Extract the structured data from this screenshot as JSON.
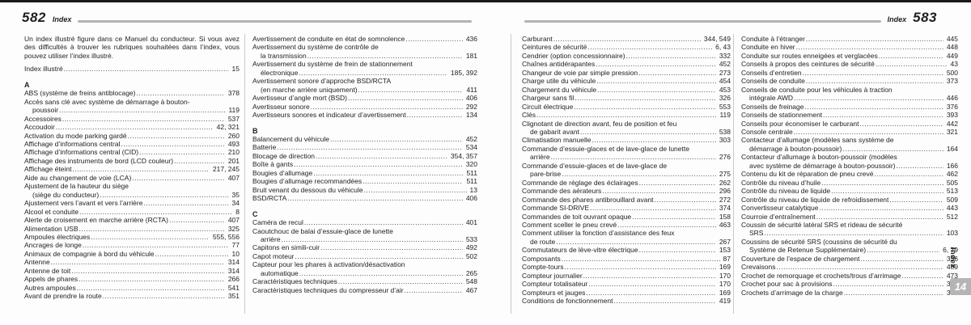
{
  "colors": {
    "text": "#1f1f1f",
    "header_rule": "#b3b3b3",
    "column_divider": "#c9c9c9",
    "top_edge": "#1a1a1a",
    "chapter_tab_bg": "#b5b5b5",
    "chapter_tab_text": "#ffffff"
  },
  "sidebar": {
    "vertical_label": "Index",
    "tab_label": "14"
  },
  "pages": [
    {
      "number": "582",
      "header_label": "Index",
      "intro": "Un index illustré figure dans ce Manuel du conducteur. Si vous avez des difficultés à trouver les rubriques souhaitées dans l’index, vous pouvez utiliser l’index illustré.",
      "intro_entry": {
        "lines": [
          "Index illustré"
        ],
        "page": "15"
      },
      "columns": [
        [
          {
            "letter": "A",
            "entries": [
              {
                "lines": [
                  "ABS (système de freins antiblocage)"
                ],
                "page": "378"
              },
              {
                "lines": [
                  "Accès sans clé avec système de démarrage à bouton-",
                  "poussoir"
                ],
                "page": "119"
              },
              {
                "lines": [
                  "Accessoires"
                ],
                "page": "537"
              },
              {
                "lines": [
                  "Accoudoir"
                ],
                "page": "42, 321"
              },
              {
                "lines": [
                  "Activation du mode parking gardé"
                ],
                "page": "260"
              },
              {
                "lines": [
                  "Affichage d’informations central"
                ],
                "page": "493"
              },
              {
                "lines": [
                  "Affichage d’informations central (CID)"
                ],
                "page": "210"
              },
              {
                "lines": [
                  "Affichage des instruments de bord (LCD couleur)"
                ],
                "page": "201"
              },
              {
                "lines": [
                  "Affichage éteint"
                ],
                "page": "217, 245"
              },
              {
                "lines": [
                  "Aide au changement de voie (LCA)"
                ],
                "page": "407"
              },
              {
                "lines": [
                  "Ajustement de la hauteur du siège",
                  "(siège du conducteur)"
                ],
                "page": "35"
              },
              {
                "lines": [
                  "Ajustement vers l’avant et vers l’arrière"
                ],
                "page": "34"
              },
              {
                "lines": [
                  "Alcool et conduite"
                ],
                "page": "8"
              },
              {
                "lines": [
                  "Alerte de croisement en marche arrière (RCTA)"
                ],
                "page": "407"
              },
              {
                "lines": [
                  "Alimentation USB"
                ],
                "page": "325"
              },
              {
                "lines": [
                  "Ampoules électriques"
                ],
                "page": "555, 556"
              },
              {
                "lines": [
                  "Ancrages de longe"
                ],
                "page": "77"
              },
              {
                "lines": [
                  "Animaux de compagnie à bord du véhicule"
                ],
                "page": "10"
              },
              {
                "lines": [
                  "Antenne"
                ],
                "page": "314"
              },
              {
                "lines": [
                  "Antenne de toit"
                ],
                "page": "314"
              },
              {
                "lines": [
                  "Appels de phares"
                ],
                "page": "266"
              },
              {
                "lines": [
                  "Autres ampoules"
                ],
                "page": "541"
              },
              {
                "lines": [
                  "Avant de prendre la route"
                ],
                "page": "351"
              }
            ]
          }
        ],
        [
          {
            "letter": null,
            "entries": [
              {
                "lines": [
                  "Avertissement de conduite en état de somnolence"
                ],
                "page": "436"
              },
              {
                "lines": [
                  "Avertissement du système de contrôle de",
                  "la transmission"
                ],
                "page": "181"
              },
              {
                "lines": [
                  "Avertissement du système de frein de stationnement",
                  "électronique"
                ],
                "page": "185, 392"
              },
              {
                "lines": [
                  "Avertissement sonore d’approche BSD/RCTA",
                  "(en marche arrière uniquement)"
                ],
                "page": "411"
              },
              {
                "lines": [
                  "Avertisseur d’angle mort (BSD)"
                ],
                "page": "406"
              },
              {
                "lines": [
                  "Avertisseur sonore"
                ],
                "page": "292"
              },
              {
                "lines": [
                  "Avertisseurs sonores et indicateur d’avertissement"
                ],
                "page": "134"
              }
            ]
          },
          {
            "letter": "B",
            "entries": [
              {
                "lines": [
                  "Balancement du véhicule"
                ],
                "page": "452"
              },
              {
                "lines": [
                  "Batterie"
                ],
                "page": "534"
              },
              {
                "lines": [
                  "Blocage de direction"
                ],
                "page": "354, 357"
              },
              {
                "lines": [
                  "Boîte à gants"
                ],
                "page": "320"
              },
              {
                "lines": [
                  "Bougies d’allumage"
                ],
                "page": "511"
              },
              {
                "lines": [
                  "Bougies d’allumage recommandées"
                ],
                "page": "511"
              },
              {
                "lines": [
                  "Bruit venant du dessous du véhicule"
                ],
                "page": "13"
              },
              {
                "lines": [
                  "BSD/RCTA"
                ],
                "page": "406"
              }
            ]
          },
          {
            "letter": "C",
            "entries": [
              {
                "lines": [
                  "Caméra de recul"
                ],
                "page": "401"
              },
              {
                "lines": [
                  "Caoutchouc de balai d’essuie-glace de lunette",
                  "arrière"
                ],
                "page": "533"
              },
              {
                "lines": [
                  "Capitons en simili-cuir"
                ],
                "page": "492"
              },
              {
                "lines": [
                  "Capot moteur"
                ],
                "page": "502"
              },
              {
                "lines": [
                  "Capteur pour les phares à activation/désactivation",
                  "automatique"
                ],
                "page": "265"
              },
              {
                "lines": [
                  "Caractéristiques techniques"
                ],
                "page": "548"
              },
              {
                "lines": [
                  "Caractéristiques techniques du compresseur d’air"
                ],
                "page": "467"
              }
            ]
          }
        ]
      ]
    },
    {
      "number": "583",
      "header_label": "Index",
      "intro": null,
      "intro_entry": null,
      "columns": [
        [
          {
            "letter": null,
            "entries": [
              {
                "lines": [
                  "Carburant"
                ],
                "page": "344, 549"
              },
              {
                "lines": [
                  "Ceintures de sécurité"
                ],
                "page": "6, 43"
              },
              {
                "lines": [
                  "Cendrier (option concessionnaire)"
                ],
                "page": "332"
              },
              {
                "lines": [
                  "Chaînes antidérapantes"
                ],
                "page": "452"
              },
              {
                "lines": [
                  "Changeur de voie par simple pression"
                ],
                "page": "273"
              },
              {
                "lines": [
                  "Charge utile du véhicule"
                ],
                "page": "454"
              },
              {
                "lines": [
                  "Chargement du véhicule"
                ],
                "page": "453"
              },
              {
                "lines": [
                  "Chargeur sans fil"
                ],
                "page": "326"
              },
              {
                "lines": [
                  "Circuit électrique"
                ],
                "page": "553"
              },
              {
                "lines": [
                  "Clés"
                ],
                "page": "119"
              },
              {
                "lines": [
                  "Clignotant de direction avant, feu de position et feu",
                  "de gabarit avant"
                ],
                "page": "538"
              },
              {
                "lines": [
                  "Climatisation manuelle"
                ],
                "page": "303"
              },
              {
                "lines": [
                  "Commande d’essuie-glaces et de lave-glace de lunette",
                  "arrière"
                ],
                "page": "276"
              },
              {
                "lines": [
                  "Commande d’essuie-glaces et de lave-glace de",
                  "pare-brise"
                ],
                "page": "275"
              },
              {
                "lines": [
                  "Commande de réglage des éclairages"
                ],
                "page": "262"
              },
              {
                "lines": [
                  "Commande des aérateurs"
                ],
                "page": "296"
              },
              {
                "lines": [
                  "Commande des phares antibrouillard avant"
                ],
                "page": "272"
              },
              {
                "lines": [
                  "Commande SI-DRIVE"
                ],
                "page": "374"
              },
              {
                "lines": [
                  "Commandes de toit ouvrant opaque"
                ],
                "page": "158"
              },
              {
                "lines": [
                  "Comment sceller le pneu crevé"
                ],
                "page": "463"
              },
              {
                "lines": [
                  "Comment utiliser la fonction d’assistance des feux",
                  "de route"
                ],
                "page": "267"
              },
              {
                "lines": [
                  "Commutateurs de lève-vitre électrique"
                ],
                "page": "153"
              },
              {
                "lines": [
                  "Composants"
                ],
                "page": "87"
              },
              {
                "lines": [
                  "Compte-tours"
                ],
                "page": "169"
              },
              {
                "lines": [
                  "Compteur journalier"
                ],
                "page": "170"
              },
              {
                "lines": [
                  "Compteur totalisateur"
                ],
                "page": "170"
              },
              {
                "lines": [
                  "Compteurs et jauges"
                ],
                "page": "169"
              },
              {
                "lines": [
                  "Conditions de fonctionnement"
                ],
                "page": "419"
              }
            ]
          }
        ],
        [
          {
            "letter": null,
            "entries": [
              {
                "lines": [
                  "Conduite à l’étranger"
                ],
                "page": "445"
              },
              {
                "lines": [
                  "Conduite en hiver"
                ],
                "page": "448"
              },
              {
                "lines": [
                  "Conduite sur routes enneigées et verglacées"
                ],
                "page": "449"
              },
              {
                "lines": [
                  "Conseils à propos des ceintures de sécurité"
                ],
                "page": "43"
              },
              {
                "lines": [
                  "Conseils d’entretien"
                ],
                "page": "500"
              },
              {
                "lines": [
                  "Conseils de conduite"
                ],
                "page": "373"
              },
              {
                "lines": [
                  "Conseils de conduite pour les véhicules à traction",
                  "intégrale AWD"
                ],
                "page": "446"
              },
              {
                "lines": [
                  "Conseils de freinage"
                ],
                "page": "376"
              },
              {
                "lines": [
                  "Conseils de stationnement"
                ],
                "page": "393"
              },
              {
                "lines": [
                  "Conseils pour économiser le carburant"
                ],
                "page": "442"
              },
              {
                "lines": [
                  "Console centrale"
                ],
                "page": "321"
              },
              {
                "lines": [
                  "Contacteur d’allumage (modèles sans système de",
                  "démarrage à bouton-poussoir)"
                ],
                "page": "164"
              },
              {
                "lines": [
                  "Contacteur d’allumage à bouton-poussoir (modèles",
                  "avec système de démarrage à bouton-poussoir)"
                ],
                "page": "166"
              },
              {
                "lines": [
                  "Contenu du kit de réparation de pneu crevé"
                ],
                "page": "462"
              },
              {
                "lines": [
                  "Contrôle du niveau d’huile"
                ],
                "page": "505"
              },
              {
                "lines": [
                  "Contrôle du niveau de liquide"
                ],
                "page": "513"
              },
              {
                "lines": [
                  "Contrôle du niveau de liquide de refroidissement"
                ],
                "page": "509"
              },
              {
                "lines": [
                  "Convertisseur catalytique"
                ],
                "page": "443"
              },
              {
                "lines": [
                  "Courroie d’entraînement"
                ],
                "page": "512"
              },
              {
                "lines": [
                  "Coussin de sécurité latéral SRS et rideau de sécurité",
                  "SRS"
                ],
                "page": "103"
              },
              {
                "lines": [
                  "Coussins de sécurité SRS (coussins de sécurité du",
                  "Système de Retenue Supplémentaire)"
                ],
                "page": "6, 79"
              },
              {
                "lines": [
                  "Couverture de l’espace de chargement"
                ],
                "page": "336"
              },
              {
                "lines": [
                  "Crevaisons"
                ],
                "page": "459"
              },
              {
                "lines": [
                  "Crochet de remorquage et crochets/trous d’arrimage"
                ],
                "page": "473"
              },
              {
                "lines": [
                  "Crochet pour sac à provisions"
                ],
                "page": "336"
              },
              {
                "lines": [
                  "Crochets d’arrimage de la charge"
                ],
                "page": "338"
              }
            ]
          }
        ]
      ]
    }
  ]
}
